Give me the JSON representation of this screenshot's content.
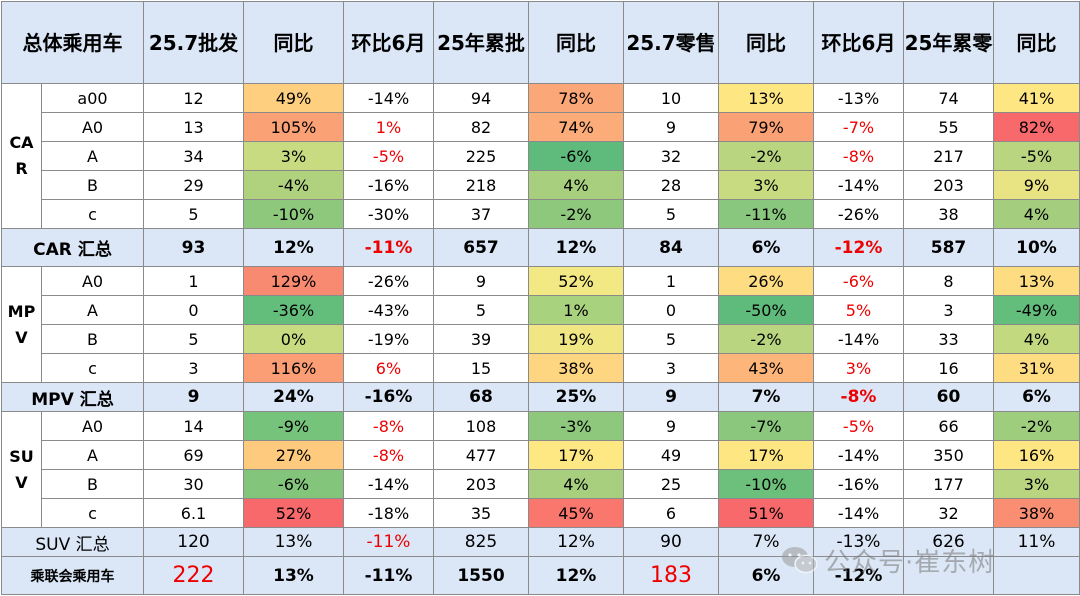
{
  "colors": {
    "header_bg": "#dbe7f7",
    "negative_text": "#ee0000",
    "border": "#8a8a8a"
  },
  "headers": [
    "总体乘用车",
    "25.7批发",
    "同比",
    "环比6月",
    "25年累批",
    "同比",
    "25.7零售",
    "同比",
    "环比6月",
    "25年累零",
    "同比"
  ],
  "groups": {
    "car": "CA R",
    "mpv": "MP V",
    "suv": "SU V"
  },
  "rows": {
    "car": [
      {
        "seg": "a00",
        "v": [
          "12",
          "49%",
          "-14%",
          "94",
          "78%",
          "10",
          "13%",
          "-13%",
          "74",
          "41%"
        ]
      },
      {
        "seg": "A0",
        "v": [
          "13",
          "105%",
          "1%",
          "82",
          "74%",
          "9",
          "79%",
          "-7%",
          "55",
          "82%"
        ]
      },
      {
        "seg": "A",
        "v": [
          "34",
          "3%",
          "-5%",
          "225",
          "-6%",
          "32",
          "-2%",
          "-8%",
          "217",
          "-5%"
        ]
      },
      {
        "seg": "B",
        "v": [
          "29",
          "-4%",
          "-16%",
          "218",
          "4%",
          "28",
          "3%",
          "-14%",
          "203",
          "9%"
        ]
      },
      {
        "seg": "c",
        "v": [
          "5",
          "-10%",
          "-30%",
          "37",
          "-2%",
          "5",
          "-11%",
          "-26%",
          "38",
          "4%"
        ]
      }
    ],
    "mpv": [
      {
        "seg": "A0",
        "v": [
          "1",
          "129%",
          "-26%",
          "9",
          "52%",
          "1",
          "26%",
          "-6%",
          "8",
          "13%"
        ]
      },
      {
        "seg": "A",
        "v": [
          "0",
          "-36%",
          "-43%",
          "5",
          "1%",
          "0",
          "-50%",
          "5%",
          "3",
          "-49%"
        ]
      },
      {
        "seg": "B",
        "v": [
          "5",
          "0%",
          "-19%",
          "39",
          "19%",
          "5",
          "-2%",
          "-14%",
          "33",
          "4%"
        ]
      },
      {
        "seg": "c",
        "v": [
          "3",
          "116%",
          "6%",
          "15",
          "38%",
          "3",
          "43%",
          "3%",
          "16",
          "31%"
        ]
      }
    ],
    "suv": [
      {
        "seg": "A0",
        "v": [
          "14",
          "-9%",
          "-8%",
          "108",
          "-3%",
          "9",
          "-7%",
          "-5%",
          "66",
          "-2%"
        ]
      },
      {
        "seg": "A",
        "v": [
          "69",
          "27%",
          "-8%",
          "477",
          "17%",
          "49",
          "17%",
          "-14%",
          "350",
          "16%"
        ]
      },
      {
        "seg": "B",
        "v": [
          "30",
          "-6%",
          "-14%",
          "203",
          "4%",
          "25",
          "-10%",
          "-16%",
          "177",
          "3%"
        ]
      },
      {
        "seg": "c",
        "v": [
          "6.1",
          "52%",
          "-18%",
          "35",
          "45%",
          "6",
          "51%",
          "-14%",
          "32",
          "38%"
        ]
      }
    ]
  },
  "summaries": {
    "car": {
      "label": "CAR 汇总",
      "v": [
        "93",
        "12%",
        "-11%",
        "657",
        "12%",
        "84",
        "6%",
        "-12%",
        "587",
        "10%"
      ]
    },
    "mpv": {
      "label": "MPV 汇总",
      "v": [
        "9",
        "24%",
        "-16%",
        "68",
        "25%",
        "9",
        "7%",
        "-8%",
        "60",
        "6%"
      ]
    },
    "suv": {
      "label": "SUV 汇总",
      "v": [
        "120",
        "13%",
        "-11%",
        "825",
        "12%",
        "90",
        "7%",
        "-13%",
        "626",
        "11%"
      ]
    },
    "total": {
      "label": "乘联会乘用车",
      "v": [
        "222",
        "13%",
        "-11%",
        "1550",
        "12%",
        "183",
        "6%",
        "-12%",
        "",
        ""
      ]
    }
  },
  "cell_colors": {
    "car": [
      [
        "#fecf7e",
        "#fca777",
        "#fee783"
      ],
      [
        "#fba176",
        "#fbac78",
        "#f8696b"
      ],
      [
        "#c9db80",
        "#5fbb7b",
        "#b9d580"
      ],
      [
        "#b0d27f",
        "#a7cf7e",
        "#e8e483"
      ],
      [
        "#8dc87d",
        "#8ec87d",
        "#a4ce7e"
      ]
    ],
    "mpv": [
      [
        "#f98a72",
        "#f2e884",
        "#fedc81"
      ],
      [
        "#63be7b",
        "#a9d27f",
        "#63be7b"
      ],
      [
        "#c8db81",
        "#f0e784",
        "#c2d980"
      ],
      [
        "#fb9d75",
        "#fed580",
        "#fedc81"
      ]
    ],
    "suv": [
      [
        "#76c37c",
        "#8dc87d",
        "#9fcd7e"
      ],
      [
        "#feca7d",
        "#fde883",
        "#fee783"
      ],
      [
        "#84c57c",
        "#a7cf7e",
        "#b9d580"
      ],
      [
        "#f8696b",
        "#fa776e",
        "#fa8e72"
      ]
    ],
    "ring": [
      [
        "#fee783",
        "#fca777",
        "#fee783"
      ]
    ]
  },
  "retail_colors": {
    "car": [
      "#fee783",
      "#fba176",
      "#b9d580",
      "#c9db80",
      "#88c77d"
    ],
    "mpv": [
      "#fedc81",
      "#5fbb7b",
      "#b9d580",
      "#fdb57a"
    ],
    "suv": [
      "#8bc77d",
      "#fee783",
      "#6dc07b",
      "#f8696b"
    ]
  },
  "watermark": {
    "text": "公众号·崔东树",
    "icon": "wechat-icon"
  }
}
